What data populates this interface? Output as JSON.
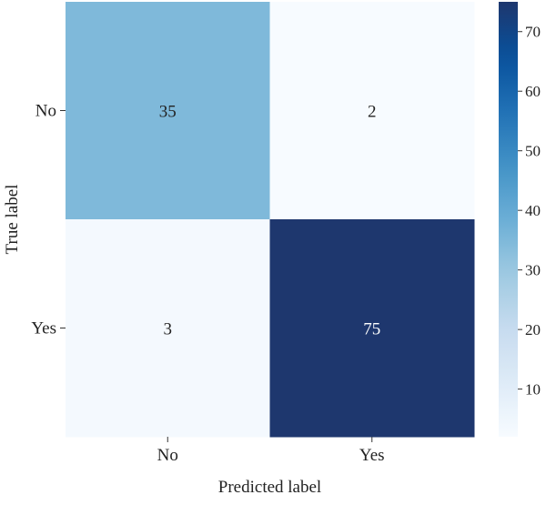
{
  "chart_data": {
    "type": "heatmap",
    "title": "",
    "xlabel": "Predicted label",
    "ylabel": "True label",
    "x_categories": [
      "No",
      "Yes"
    ],
    "y_categories": [
      "No",
      "Yes"
    ],
    "values": [
      [
        35,
        2
      ],
      [
        3,
        75
      ]
    ],
    "colormap": "Blues",
    "color_range": [
      2,
      75
    ],
    "colorbar": {
      "ticks": [
        10,
        20,
        30,
        40,
        50,
        60,
        70
      ],
      "position": "right"
    },
    "grid": false
  }
}
